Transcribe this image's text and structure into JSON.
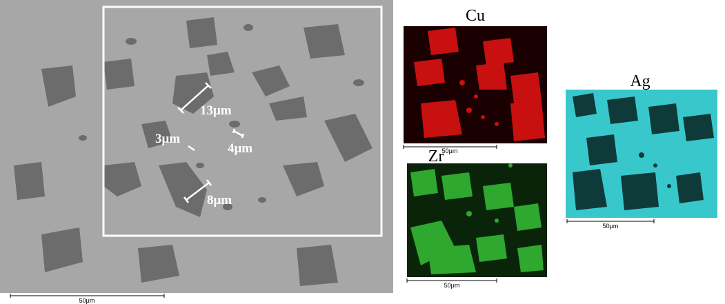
{
  "sem": {
    "labels": [
      "13μm",
      "3μm",
      "4μm",
      "8μm"
    ],
    "scale_bar": "50μm"
  },
  "maps": [
    {
      "element": "Cu",
      "scale_bar": "50μm"
    },
    {
      "element": "Zr",
      "scale_bar": "50μm"
    },
    {
      "element": "Ag",
      "scale_bar": "50μm"
    }
  ]
}
